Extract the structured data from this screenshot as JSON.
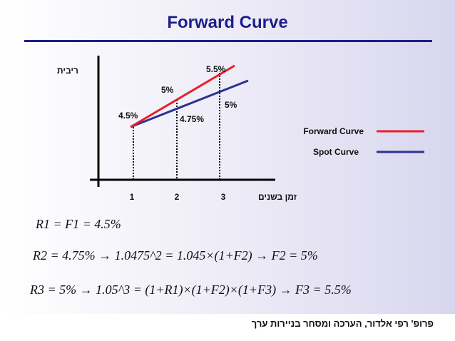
{
  "title": "Forward Curve",
  "chart": {
    "y_axis_label": "ריבית",
    "x_axis_label": "זמן בשנים",
    "ticks": [
      "1",
      "2",
      "3"
    ],
    "point_labels": {
      "start": "4.5%",
      "forward_2": "5%",
      "forward_3": "5.5%",
      "spot_2": "4.75%",
      "spot_3": "5%"
    },
    "legend": [
      {
        "name": "Forward Curve",
        "color": "#e8202a"
      },
      {
        "name": "Spot Curve",
        "color": "#2e3192"
      }
    ]
  },
  "chart_data": {
    "type": "line",
    "x": [
      1,
      2,
      3
    ],
    "series": [
      {
        "name": "Forward Curve",
        "values": [
          4.5,
          5,
          5.5
        ]
      },
      {
        "name": "Spot Curve",
        "values": [
          4.5,
          4.75,
          5
        ]
      }
    ],
    "xlabel": "זמן בשנים",
    "ylabel": "ריבית",
    "legend_position": "right"
  },
  "equations": {
    "eq1": "R1 = F1 = 4.5%",
    "eq2": "R2 = 4.75% → 1.0475^2 = 1.045×(1+F2) → F2 = 5%",
    "eq3": "R3 = 5% → 1.05^3 = (1+R1)×(1+F2)×(1+F3) → F3 = 5.5%"
  },
  "footer": "פרופ' רפי אלדור, הערכה ומסחר בניירות ערך"
}
